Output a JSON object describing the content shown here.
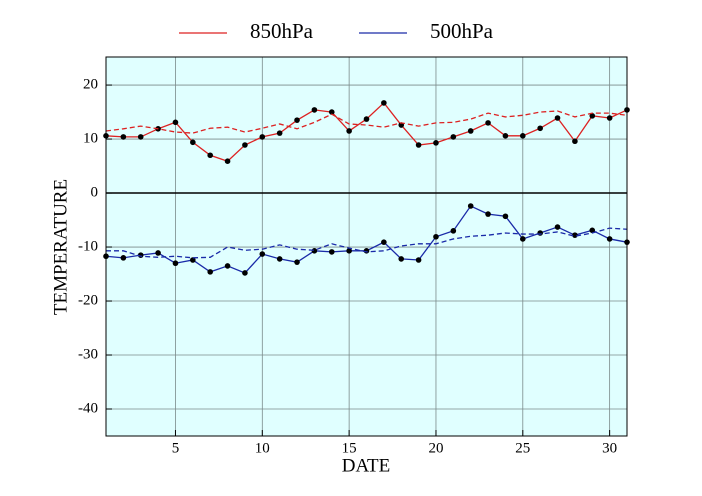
{
  "chart_data": {
    "type": "line",
    "xlabel": "DATE",
    "ylabel": "TEMPERATURE",
    "x": [
      1,
      2,
      3,
      4,
      5,
      6,
      7,
      8,
      9,
      10,
      11,
      12,
      13,
      14,
      15,
      16,
      17,
      18,
      19,
      20,
      21,
      22,
      23,
      24,
      25,
      26,
      27,
      28,
      29,
      30,
      31
    ],
    "xlim": [
      1,
      31
    ],
    "xticks": [
      5,
      10,
      15,
      20,
      25,
      30
    ],
    "ylim": [
      -45,
      25.2
    ],
    "yticks": [
      -40,
      -30,
      -20,
      -10,
      0,
      10,
      20
    ],
    "grid": true,
    "background": "#e0ffff",
    "series": [
      {
        "name": "850hPa",
        "color": "#dd2222",
        "style": "solid",
        "markers": true,
        "values": [
          10.6,
          10.4,
          10.4,
          11.9,
          13.1,
          9.4,
          7.0,
          5.9,
          8.9,
          10.4,
          11.1,
          13.5,
          15.4,
          15.0,
          11.5,
          13.7,
          16.7,
          12.6,
          8.9,
          9.3,
          10.4,
          11.5,
          13.0,
          10.6,
          10.6,
          12.0,
          13.9,
          9.6,
          14.3,
          13.9,
          15.4
        ]
      },
      {
        "color": "#dd2222",
        "style": "dashed",
        "markers": false,
        "values": [
          11.5,
          11.9,
          12.4,
          11.9,
          11.3,
          11.1,
          12.0,
          12.2,
          11.3,
          12.0,
          12.8,
          11.9,
          13.1,
          14.6,
          12.8,
          12.6,
          12.2,
          13.0,
          12.4,
          13.0,
          13.1,
          13.7,
          14.8,
          14.1,
          14.4,
          15.0,
          15.2,
          14.1,
          14.8,
          14.8,
          14.4
        ]
      },
      {
        "name": "500hPa",
        "color": "#1a2aa8",
        "style": "solid",
        "markers": true,
        "values": [
          -11.7,
          -12.0,
          -11.5,
          -11.1,
          -13.0,
          -12.4,
          -14.6,
          -13.5,
          -14.8,
          -11.3,
          -12.2,
          -12.8,
          -10.7,
          -10.9,
          -10.7,
          -10.7,
          -9.1,
          -12.2,
          -12.4,
          -8.1,
          -7.0,
          -2.4,
          -3.9,
          -4.3,
          -8.5,
          -7.4,
          -6.3,
          -7.8,
          -6.9,
          -8.5,
          -9.1
        ]
      },
      {
        "color": "#1a2aa8",
        "style": "dashed",
        "markers": false,
        "values": [
          -10.7,
          -10.7,
          -11.7,
          -11.9,
          -11.7,
          -12.0,
          -11.9,
          -10.0,
          -10.6,
          -10.4,
          -9.6,
          -10.4,
          -10.6,
          -9.4,
          -10.2,
          -10.9,
          -10.7,
          -9.8,
          -9.4,
          -9.4,
          -8.5,
          -8.0,
          -7.8,
          -7.4,
          -7.6,
          -7.6,
          -7.2,
          -8.0,
          -7.4,
          -6.5,
          -6.7
        ]
      }
    ]
  }
}
